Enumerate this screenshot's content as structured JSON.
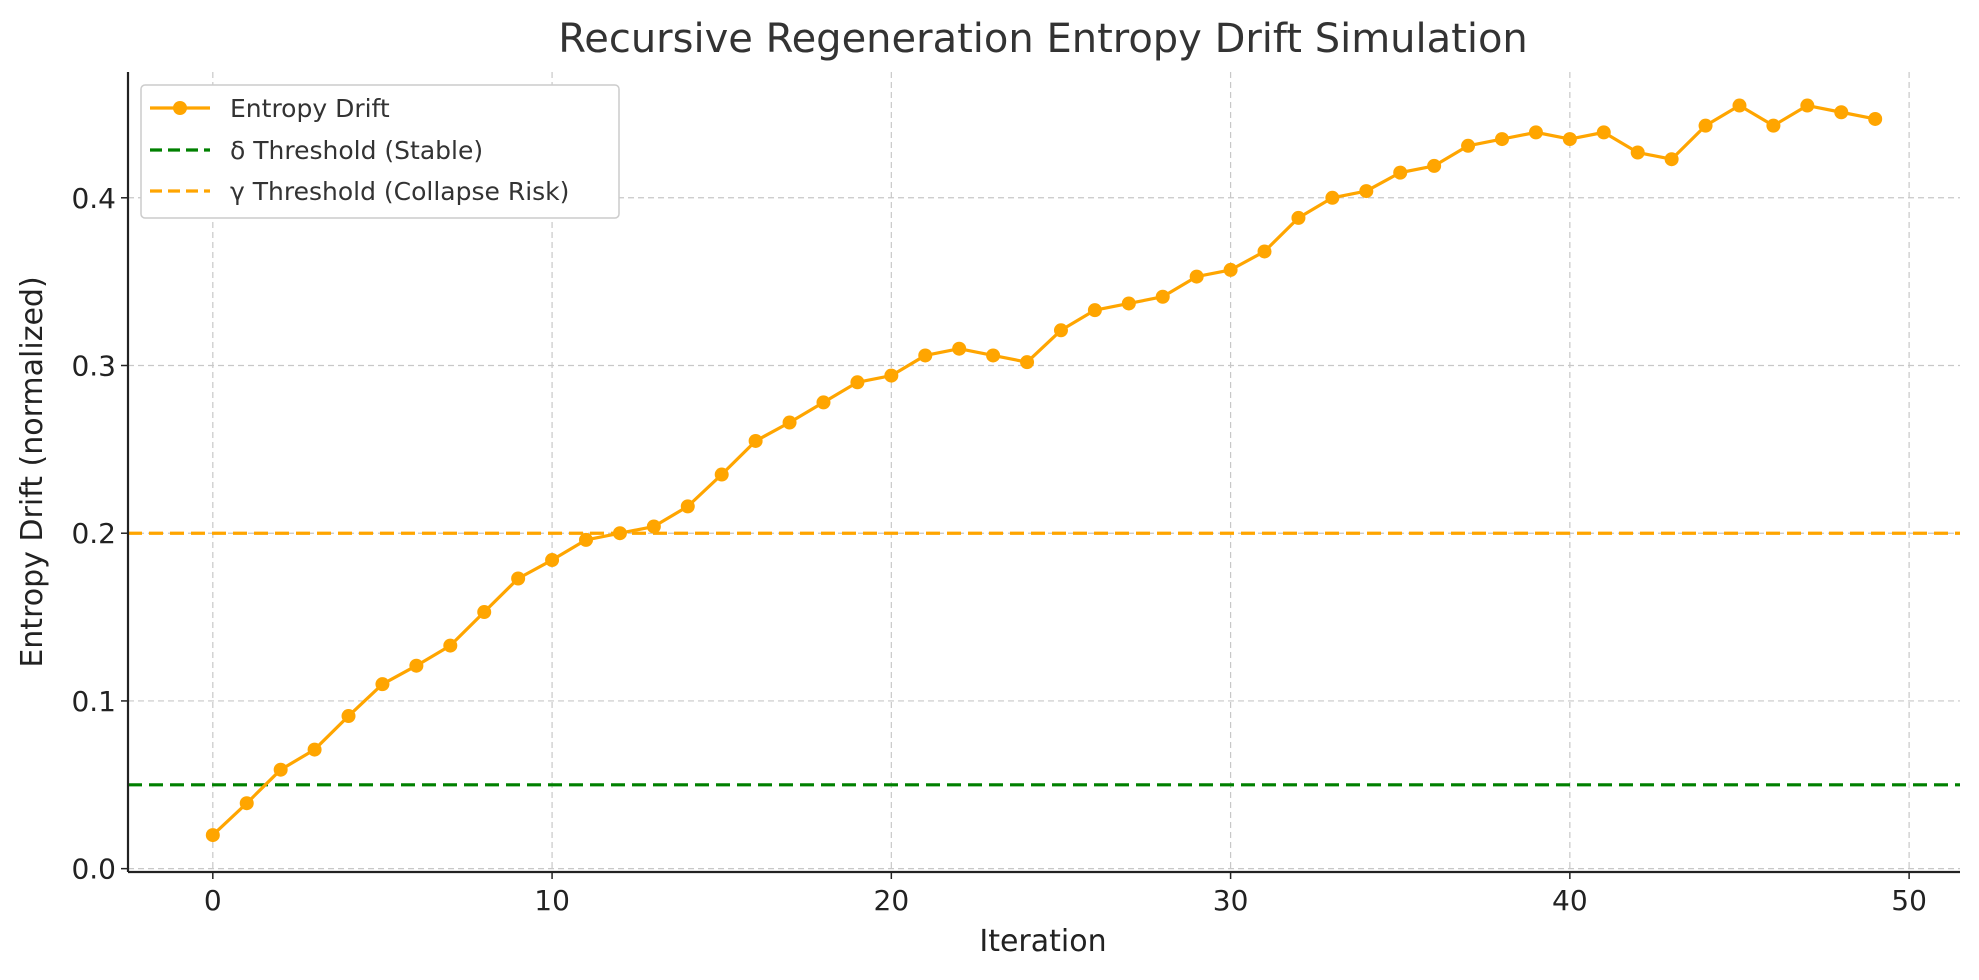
{
  "chart_data": {
    "type": "line",
    "title": "Recursive Regeneration Entropy Drift Simulation",
    "xlabel": "Iteration",
    "ylabel": "Entropy Drift (normalized)",
    "xlim": [
      -2.5,
      51.5
    ],
    "ylim": [
      -0.002,
      0.475
    ],
    "xticks": [
      0,
      10,
      20,
      30,
      40,
      50
    ],
    "xtick_labels": [
      "0",
      "10",
      "20",
      "30",
      "40",
      "50"
    ],
    "yticks": [
      0.0,
      0.1,
      0.2,
      0.3,
      0.4
    ],
    "ytick_labels": [
      "0.0",
      "0.1",
      "0.2",
      "0.3",
      "0.4"
    ],
    "grid": true,
    "legend_position": "top-left",
    "x": [
      0,
      1,
      2,
      3,
      4,
      5,
      6,
      7,
      8,
      9,
      10,
      11,
      12,
      13,
      14,
      15,
      16,
      17,
      18,
      19,
      20,
      21,
      22,
      23,
      24,
      25,
      26,
      27,
      28,
      29,
      30,
      31,
      32,
      33,
      34,
      35,
      36,
      37,
      38,
      39,
      40,
      41,
      42,
      43,
      44,
      45,
      46,
      47,
      48,
      49
    ],
    "series": [
      {
        "name": "Entropy Drift",
        "color": "#FFA500",
        "marker": "circle",
        "values": [
          0.02,
          0.039,
          0.059,
          0.071,
          0.091,
          0.11,
          0.121,
          0.133,
          0.153,
          0.173,
          0.184,
          0.196,
          0.2,
          0.204,
          0.216,
          0.235,
          0.255,
          0.266,
          0.278,
          0.29,
          0.294,
          0.306,
          0.31,
          0.306,
          0.302,
          0.321,
          0.333,
          0.337,
          0.341,
          0.353,
          0.357,
          0.368,
          0.388,
          0.4,
          0.404,
          0.415,
          0.419,
          0.431,
          0.435,
          0.439,
          0.435,
          0.439,
          0.427,
          0.423,
          0.443,
          0.455,
          0.443,
          0.455,
          0.451,
          0.447
        ]
      }
    ],
    "reference_lines": [
      {
        "name": "δ Threshold (Stable)",
        "y": 0.05,
        "color": "#008000",
        "style": "dashed"
      },
      {
        "name": "γ Threshold (Collapse Risk)",
        "y": 0.2,
        "color": "#FFA500",
        "style": "dashed"
      }
    ]
  }
}
